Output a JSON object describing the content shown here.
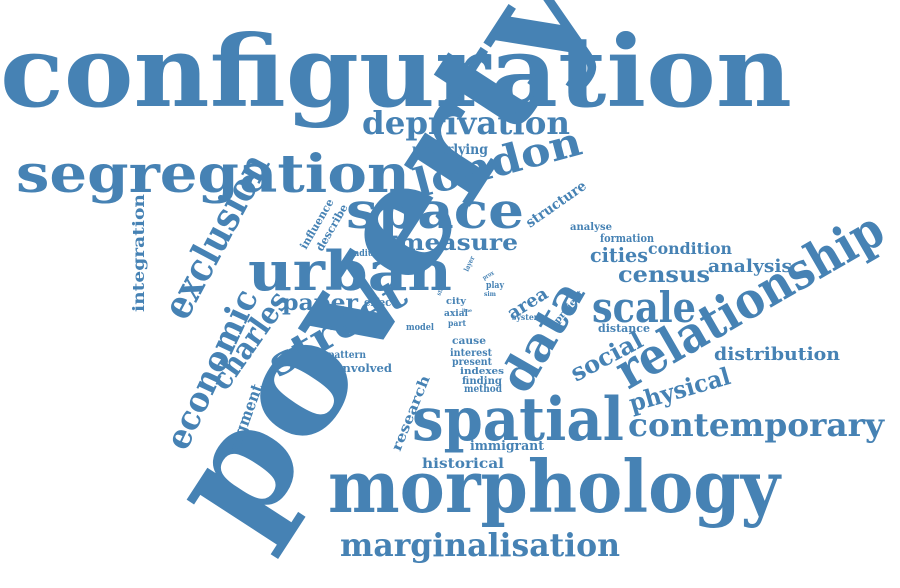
{
  "color": "#4682b4",
  "words": {
    "configuration": "configuration",
    "poverty": "poverty",
    "morphology": "morphology",
    "spatial": "spatial",
    "relationship": "relationship",
    "segregation": "segregation",
    "urban": "urban",
    "space": "space",
    "london": "london",
    "deprivation": "deprivation",
    "exclusion": "exclusion",
    "economic": "economic",
    "street": "street",
    "data": "data",
    "scale": "scale",
    "marginalisation": "marginalisation",
    "contemporary": "contemporary",
    "physical": "physical",
    "social": "social",
    "charles": "charles",
    "distribution": "distribution",
    "census": "census",
    "analysis": "analysis",
    "cities": "cities",
    "condition": "condition",
    "measure": "measure",
    "paper": "paper",
    "area": "area",
    "integration": "integration",
    "segment": "segment",
    "research": "research",
    "historical": "historical",
    "immigrant": "immigrant",
    "structure": "structure",
    "underlying": "underlying",
    "influence": "influence",
    "describe": "describe",
    "radius": "radius",
    "effect": "effect",
    "model": "model",
    "pattern": "pattern",
    "involved": "involved",
    "cause": "cause",
    "interest": "interest",
    "present": "present",
    "indexes": "indexes",
    "finding": "finding",
    "method": "method",
    "city": "city",
    "axial": "axial",
    "part": "part",
    "system": "system",
    "play": "play",
    "analyse": "analyse",
    "formation": "formation",
    "distance": "distance",
    "project": "project",
    "layer": "layer",
    "step": "step",
    "prox": "prox",
    "sim": "sim",
    "line": "line"
  }
}
